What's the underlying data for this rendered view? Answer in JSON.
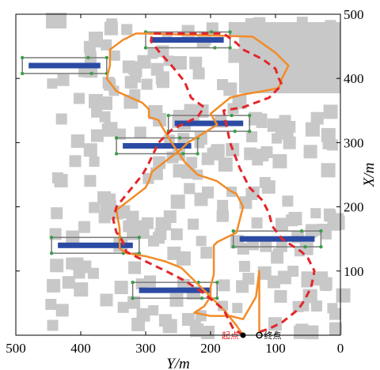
{
  "chart_data": {
    "type": "line",
    "title": "",
    "xlabel": "Y/m",
    "ylabel": "X/m",
    "xlim": [
      500,
      0
    ],
    "ylim": [
      0,
      500
    ],
    "x_ticks": [
      500,
      400,
      300,
      200,
      100,
      0
    ],
    "y_ticks": [
      100,
      200,
      300,
      400,
      500
    ],
    "y_axis_position": "right",
    "x_axis_reversed": true,
    "grid": false,
    "legend": "none",
    "colors": {
      "obstacle": "#c8c8c8",
      "vehicle_bar": "#2b4aa3",
      "box": "#7a7a7a",
      "box_corner": "#3a9e48",
      "solid_path": "#f28c28",
      "dashed_path": "#e3262b",
      "start_label": "#e3262b",
      "goal_label": "#000000"
    },
    "start": {
      "label": "起点",
      "y": 150,
      "x": 0
    },
    "goal": {
      "label": "终点",
      "y": 125,
      "x": 0
    },
    "series": [
      {
        "style": "solid",
        "color": "#f28c28",
        "points": [
          [
            150,
            0
          ],
          [
            160,
            15
          ],
          [
            180,
            40
          ],
          [
            200,
            60
          ],
          [
            225,
            85
          ],
          [
            245,
            105
          ],
          [
            270,
            115
          ],
          [
            300,
            123
          ],
          [
            330,
            128
          ],
          [
            340,
            135
          ],
          [
            340,
            150
          ],
          [
            340,
            165
          ],
          [
            345,
            195
          ],
          [
            300,
            230
          ],
          [
            295,
            240
          ],
          [
            290,
            255
          ],
          [
            245,
            290
          ],
          [
            235,
            300
          ],
          [
            210,
            315
          ],
          [
            190,
            328
          ],
          [
            200,
            345
          ],
          [
            170,
            370
          ],
          [
            150,
            375
          ],
          [
            120,
            380
          ],
          [
            95,
            385
          ],
          [
            90,
            400
          ],
          [
            80,
            420
          ],
          [
            100,
            440
          ],
          [
            135,
            465
          ],
          [
            300,
            470
          ],
          [
            315,
            470
          ],
          [
            335,
            460
          ],
          [
            355,
            445
          ],
          [
            355,
            420
          ],
          [
            360,
            400
          ],
          [
            345,
            380
          ],
          [
            305,
            362
          ],
          [
            295,
            352
          ],
          [
            295,
            340
          ],
          [
            280,
            335
          ],
          [
            275,
            325
          ],
          [
            260,
            300
          ],
          [
            240,
            270
          ],
          [
            220,
            250
          ],
          [
            190,
            240
          ],
          [
            170,
            225
          ],
          [
            160,
            220
          ],
          [
            150,
            200
          ],
          [
            160,
            160
          ],
          [
            190,
            145
          ],
          [
            195,
            140
          ],
          [
            195,
            125
          ],
          [
            195,
            95
          ],
          [
            200,
            75
          ],
          [
            200,
            60
          ],
          [
            210,
            45
          ],
          [
            225,
            35
          ],
          [
            200,
            30
          ],
          [
            170,
            30
          ],
          [
            150,
            25
          ],
          [
            130,
            60
          ],
          [
            125,
            100
          ],
          [
            125,
            50
          ],
          [
            125,
            5
          ]
        ]
      },
      {
        "style": "dashed",
        "color": "#e3262b",
        "points": [
          [
            150,
            0
          ],
          [
            165,
            10
          ],
          [
            180,
            40
          ],
          [
            210,
            65
          ],
          [
            240,
            85
          ],
          [
            265,
            98
          ],
          [
            300,
            115
          ],
          [
            330,
            130
          ],
          [
            335,
            145
          ],
          [
            340,
            155
          ],
          [
            345,
            160
          ],
          [
            350,
            180
          ],
          [
            345,
            200
          ],
          [
            305,
            250
          ],
          [
            298,
            262
          ],
          [
            280,
            300
          ],
          [
            260,
            320
          ],
          [
            220,
            340
          ],
          [
            210,
            355
          ],
          [
            230,
            370
          ],
          [
            240,
            395
          ],
          [
            260,
            420
          ],
          [
            278,
            440
          ],
          [
            292,
            458
          ],
          [
            290,
            470
          ],
          [
            180,
            470
          ],
          [
            160,
            455
          ],
          [
            150,
            445
          ],
          [
            120,
            430
          ],
          [
            100,
            415
          ],
          [
            95,
            400
          ],
          [
            90,
            390
          ],
          [
            100,
            380
          ],
          [
            110,
            370
          ],
          [
            150,
            355
          ],
          [
            180,
            350
          ],
          [
            170,
            300
          ],
          [
            155,
            260
          ],
          [
            140,
            230
          ],
          [
            120,
            210
          ],
          [
            110,
            190
          ],
          [
            105,
            170
          ],
          [
            90,
            150
          ],
          [
            60,
            130
          ],
          [
            50,
            120
          ],
          [
            40,
            100
          ],
          [
            45,
            75
          ],
          [
            55,
            55
          ],
          [
            65,
            40
          ],
          [
            90,
            20
          ],
          [
            110,
            10
          ],
          [
            125,
            5
          ]
        ]
      }
    ],
    "vehicles": [
      {
        "y_min": 360,
        "y_max": 490,
        "x": 420
      },
      {
        "y_min": 170,
        "y_max": 300,
        "x": 460
      },
      {
        "y_min": 140,
        "y_max": 265,
        "x": 330
      },
      {
        "y_min": 220,
        "y_max": 345,
        "x": 295
      },
      {
        "y_min": 30,
        "y_max": 165,
        "x": 150
      },
      {
        "y_min": 310,
        "y_max": 445,
        "x": 140
      },
      {
        "y_min": 190,
        "y_max": 320,
        "x": 70
      }
    ]
  }
}
